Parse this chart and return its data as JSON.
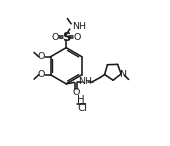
{
  "bg": "#ffffff",
  "lc": "#1a1a1a",
  "lw": 1.15,
  "fs": 6.8,
  "figw": 1.7,
  "figh": 1.46,
  "dpi": 100,
  "xlim": [
    -1,
    10
  ],
  "ylim": [
    0,
    10
  ]
}
